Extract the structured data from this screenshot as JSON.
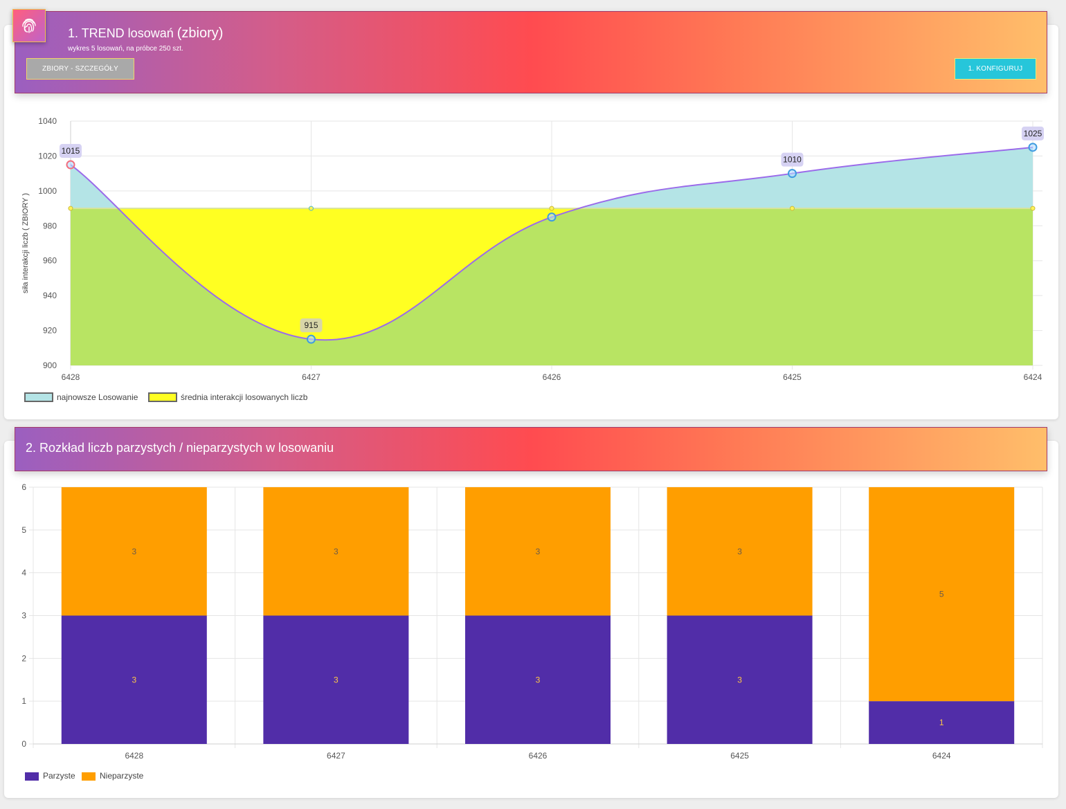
{
  "section1": {
    "title_prefix": "1. TREND losowań",
    "title_suffix": "(zbiory)",
    "subtitle": "wykres 5 losowań, na próbce 250 szt.",
    "btn_details": "ZBIORY - SZCZEGÓŁY",
    "btn_config": "1. KONFIGURUJ"
  },
  "section2": {
    "title": "2. Rozkład liczb parzystych / nieparzystych w losowaniu"
  },
  "icon": "fingerprint-icon",
  "chart_data": [
    {
      "type": "area",
      "categories": [
        "6428",
        "6427",
        "6426",
        "6425",
        "6424"
      ],
      "series": [
        {
          "name": "najnowsze Losowanie",
          "values": [
            1015,
            915,
            985,
            1010,
            1025
          ],
          "color": "#b4e4e6",
          "line_color": "#9b6bea"
        },
        {
          "name": "średnia interakcji losowanych liczb",
          "values": [
            990,
            990,
            990,
            990,
            990
          ],
          "color": "#ffff22"
        }
      ],
      "data_labels": [
        1015,
        915,
        null,
        1010,
        1025
      ],
      "ylabel": "siła interakcji liczb ( ZBIORY )",
      "ylim": [
        900,
        1040
      ],
      "yticks": [
        900,
        920,
        940,
        960,
        980,
        1000,
        1020,
        1040
      ],
      "grid": true,
      "legend": "bottom-left"
    },
    {
      "type": "bar",
      "stacked": true,
      "categories": [
        "6428",
        "6427",
        "6426",
        "6425",
        "6424"
      ],
      "series": [
        {
          "name": "Parzyste",
          "values": [
            3,
            3,
            3,
            3,
            1
          ],
          "color": "#512da8"
        },
        {
          "name": "Nieparzyste",
          "values": [
            3,
            3,
            3,
            3,
            5
          ],
          "color": "#ff9e00"
        }
      ],
      "ylim": [
        0,
        6
      ],
      "yticks": [
        0,
        1,
        2,
        3,
        4,
        5,
        6
      ],
      "grid": true,
      "legend": "bottom-left"
    }
  ]
}
